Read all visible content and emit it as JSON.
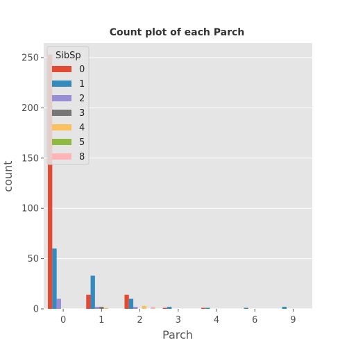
{
  "chart_data": {
    "type": "bar",
    "title": "Count plot of each Parch",
    "xlabel": "Parch",
    "ylabel": "count",
    "categories": [
      "0",
      "1",
      "2",
      "3",
      "4",
      "6",
      "9"
    ],
    "ylim": [
      0,
      265
    ],
    "yticks": [
      0,
      50,
      100,
      150,
      200,
      250
    ],
    "grid": true,
    "legend": {
      "title": "SibSp",
      "position": "top-left"
    },
    "series": [
      {
        "name": "0",
        "color": "#E24A33",
        "values": [
          253,
          14,
          14,
          1,
          1,
          0,
          0
        ]
      },
      {
        "name": "1",
        "color": "#348ABD",
        "values": [
          60,
          33,
          10,
          2,
          1,
          1,
          2
        ]
      },
      {
        "name": "2",
        "color": "#988ED5",
        "values": [
          10,
          2,
          2,
          0,
          0,
          0,
          0
        ]
      },
      {
        "name": "3",
        "color": "#777777",
        "values": [
          0,
          2,
          0,
          0,
          0,
          0,
          0
        ]
      },
      {
        "name": "4",
        "color": "#FBC15E",
        "values": [
          0,
          1,
          3,
          0,
          0,
          0,
          0
        ]
      },
      {
        "name": "5",
        "color": "#8EBA42",
        "values": [
          0,
          0,
          0,
          0,
          0,
          0,
          0
        ]
      },
      {
        "name": "8",
        "color": "#FFB5B8",
        "values": [
          0,
          0,
          2,
          0,
          0,
          0,
          0
        ]
      }
    ]
  }
}
